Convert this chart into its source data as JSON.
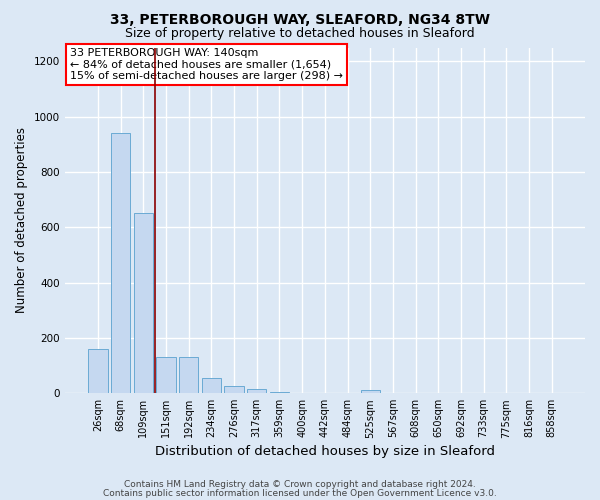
{
  "title1": "33, PETERBOROUGH WAY, SLEAFORD, NG34 8TW",
  "title2": "Size of property relative to detached houses in Sleaford",
  "xlabel": "Distribution of detached houses by size in Sleaford",
  "ylabel": "Number of detached properties",
  "categories": [
    "26sqm",
    "68sqm",
    "109sqm",
    "151sqm",
    "192sqm",
    "234sqm",
    "276sqm",
    "317sqm",
    "359sqm",
    "400sqm",
    "442sqm",
    "484sqm",
    "525sqm",
    "567sqm",
    "608sqm",
    "650sqm",
    "692sqm",
    "733sqm",
    "775sqm",
    "816sqm",
    "858sqm"
  ],
  "values": [
    160,
    940,
    650,
    130,
    130,
    55,
    25,
    15,
    5,
    2,
    2,
    2,
    10,
    0,
    0,
    0,
    0,
    0,
    0,
    0,
    0
  ],
  "bar_color": "#c5d8f0",
  "bar_edge_color": "#6aaad4",
  "red_line_index": 3,
  "ylim": [
    0,
    1250
  ],
  "yticks": [
    0,
    200,
    400,
    600,
    800,
    1000,
    1200
  ],
  "annotation_line1": "33 PETERBOROUGH WAY: 140sqm",
  "annotation_line2": "← 84% of detached houses are smaller (1,654)",
  "annotation_line3": "15% of semi-detached houses are larger (298) →",
  "footer1": "Contains HM Land Registry data © Crown copyright and database right 2024.",
  "footer2": "Contains public sector information licensed under the Open Government Licence v3.0.",
  "bg_color": "#dce8f5",
  "plot_bg_color": "#dce8f5",
  "grid_color": "#ffffff",
  "title1_fontsize": 10,
  "title2_fontsize": 9,
  "xlabel_fontsize": 9.5,
  "ylabel_fontsize": 8.5,
  "tick_fontsize": 7,
  "annotation_fontsize": 8,
  "footer_fontsize": 6.5
}
